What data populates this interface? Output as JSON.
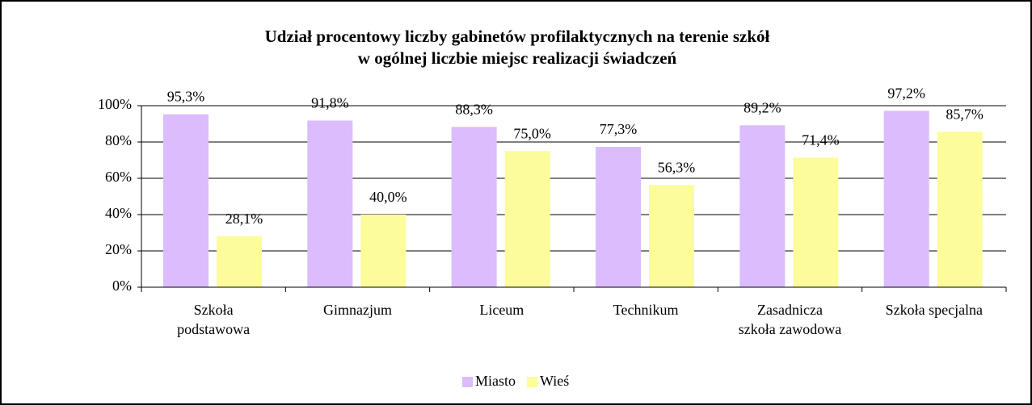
{
  "chart_data": {
    "type": "bar",
    "title": [
      "Udział procentowy liczby gabinetów profilaktycznych na terenie szkół",
      "w ogólnej liczbie miejsc realizacji świadczeń"
    ],
    "categories": [
      [
        "Szkoła",
        "podstawowa"
      ],
      [
        "Gimnazjum"
      ],
      [
        "Liceum"
      ],
      [
        "Technikum"
      ],
      [
        "Zasadnicza",
        "szkoła zawodowa"
      ],
      [
        "Szkoła specjalna"
      ]
    ],
    "series": [
      {
        "name": "Miasto",
        "color": "#dcbcfc",
        "values": [
          95.3,
          91.8,
          88.3,
          77.3,
          89.2,
          97.2
        ],
        "value_labels": [
          "95,3%",
          "91,8%",
          "88,3%",
          "77,3%",
          "89,2%",
          "97,2%"
        ]
      },
      {
        "name": "Wieś",
        "color": "#fcfc9c",
        "values": [
          28.1,
          40.0,
          75.0,
          56.3,
          71.4,
          85.7
        ],
        "value_labels": [
          "28,1%",
          "40,0%",
          "75,0%",
          "56,3%",
          "71,4%",
          "85,7%"
        ]
      }
    ],
    "ylim": [
      0,
      100
    ],
    "yticks": [
      {
        "value": 0,
        "label": "0%"
      },
      {
        "value": 20,
        "label": "20%"
      },
      {
        "value": 40,
        "label": "40%"
      },
      {
        "value": 60,
        "label": "60%"
      },
      {
        "value": 80,
        "label": "80%"
      },
      {
        "value": 100,
        "label": "100%"
      }
    ],
    "grid": true,
    "legend": "bottom"
  }
}
